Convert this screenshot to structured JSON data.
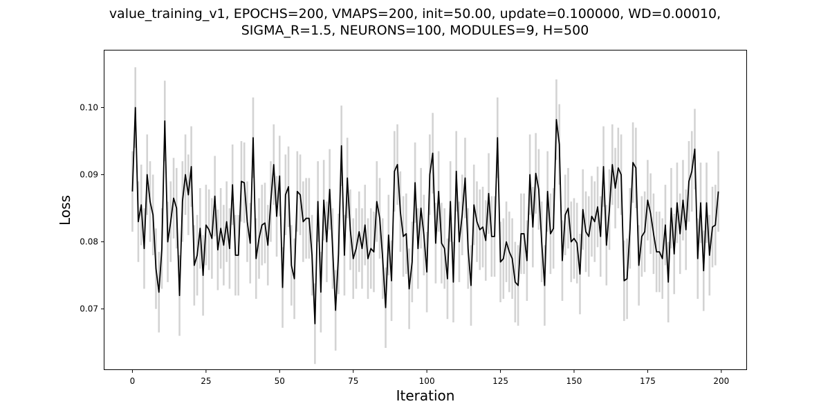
{
  "chart_data": {
    "type": "line",
    "title_lines": [
      "value_training_v1, EPOCHS=200, VMAPS=200, init=50.00, update=0.100000, WD=0.00010,",
      "SIGMA_R=1.5, NEURONS=100, MODULES=9, H=500"
    ],
    "xlabel": "Iteration",
    "ylabel": "Loss",
    "xlim": [
      -9.5,
      208.5
    ],
    "ylim": [
      0.061,
      0.1085
    ],
    "xticks": [
      0,
      25,
      50,
      75,
      100,
      125,
      150,
      175,
      200
    ],
    "yticks": [
      0.07,
      0.08,
      0.09,
      0.1
    ],
    "xtick_labels": [
      "0",
      "25",
      "50",
      "75",
      "100",
      "125",
      "150",
      "175",
      "200"
    ],
    "ytick_labels": [
      "0.07",
      "0.08",
      "0.09",
      "0.10"
    ],
    "grid": false,
    "line_color": "#000000",
    "errorbar_color": "#d3d3d3",
    "error_halfwidth": 0.006,
    "x_start": 0,
    "x_step": 1,
    "series": [
      {
        "values": [
          0.0875,
          0.1,
          0.083,
          0.0855,
          0.079,
          0.09,
          0.086,
          0.084,
          0.076,
          0.0725,
          0.079,
          0.098,
          0.08,
          0.083,
          0.0865,
          0.085,
          0.072,
          0.086,
          0.09,
          0.087,
          0.0912,
          0.0765,
          0.078,
          0.082,
          0.075,
          0.0825,
          0.0818,
          0.0805,
          0.0868,
          0.0788,
          0.082,
          0.0795,
          0.083,
          0.079,
          0.0885,
          0.078,
          0.078,
          0.089,
          0.0888,
          0.083,
          0.0798,
          0.0955,
          0.0775,
          0.0805,
          0.0825,
          0.0828,
          0.0795,
          0.086,
          0.0915,
          0.0838,
          0.0898,
          0.0732,
          0.087,
          0.0882,
          0.0765,
          0.0745,
          0.0875,
          0.087,
          0.083,
          0.0835,
          0.0835,
          0.078,
          0.0678,
          0.086,
          0.0725,
          0.0862,
          0.08,
          0.0878,
          0.079,
          0.0698,
          0.0782,
          0.0943,
          0.078,
          0.0895,
          0.0818,
          0.0775,
          0.079,
          0.0815,
          0.079,
          0.0825,
          0.0775,
          0.079,
          0.0785,
          0.086,
          0.0835,
          0.0775,
          0.0702,
          0.081,
          0.0742,
          0.0905,
          0.0915,
          0.0845,
          0.0808,
          0.0812,
          0.073,
          0.077,
          0.0888,
          0.079,
          0.085,
          0.081,
          0.0755,
          0.09,
          0.0932,
          0.0798,
          0.0875,
          0.0798,
          0.079,
          0.0745,
          0.086,
          0.074,
          0.0905,
          0.08,
          0.084,
          0.0895,
          0.079,
          0.0735,
          0.0855,
          0.083,
          0.0818,
          0.0822,
          0.0802,
          0.0872,
          0.0808,
          0.0808,
          0.0955,
          0.077,
          0.0775,
          0.08,
          0.0785,
          0.0775,
          0.074,
          0.0735,
          0.0812,
          0.0812,
          0.0772,
          0.09,
          0.0822,
          0.0902,
          0.0878,
          0.08,
          0.0735,
          0.0875,
          0.0812,
          0.082,
          0.0982,
          0.0945,
          0.0772,
          0.084,
          0.085,
          0.08,
          0.0805,
          0.0798,
          0.0752,
          0.0848,
          0.0815,
          0.0808,
          0.0838,
          0.083,
          0.0852,
          0.0808,
          0.0912,
          0.0795,
          0.0848,
          0.0915,
          0.088,
          0.091,
          0.09,
          0.0742,
          0.0745,
          0.082,
          0.0918,
          0.091,
          0.0765,
          0.0808,
          0.0815,
          0.0862,
          0.0842,
          0.0812,
          0.0785,
          0.0785,
          0.0775,
          0.0825,
          0.074,
          0.085,
          0.0782,
          0.0858,
          0.0812,
          0.0862,
          0.0818,
          0.089,
          0.0905,
          0.0938,
          0.0775,
          0.0858,
          0.0757,
          0.0858,
          0.078,
          0.0822,
          0.0825,
          0.0875
        ]
      }
    ]
  }
}
